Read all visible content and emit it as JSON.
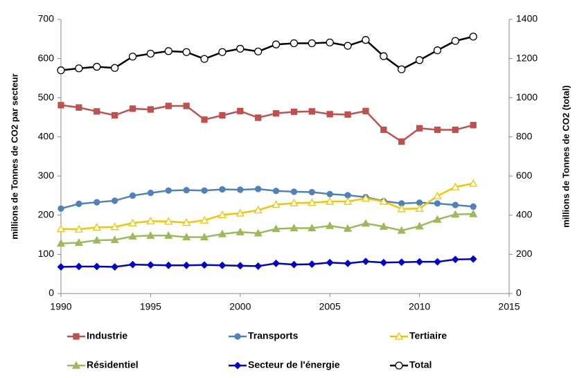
{
  "chart_data": {
    "type": "line",
    "y_label": "millions de Tonnes de CO2 par secteur",
    "y2_label": "millions de  Tonnes de CO2 (total)",
    "x": [
      1990,
      1991,
      1992,
      1993,
      1994,
      1995,
      1996,
      1997,
      1998,
      1999,
      2000,
      2001,
      2002,
      2003,
      2004,
      2005,
      2006,
      2007,
      2008,
      2009,
      2010,
      2011,
      2012,
      2013
    ],
    "xlim": [
      1990,
      2015
    ],
    "xticks": [
      1990,
      1995,
      2000,
      2005,
      2010,
      2015
    ],
    "ylim": [
      0,
      700
    ],
    "yticks": [
      0,
      100,
      200,
      300,
      400,
      500,
      600,
      700
    ],
    "y2lim": [
      0,
      1400
    ],
    "y2ticks": [
      0,
      200,
      400,
      600,
      800,
      1000,
      1200,
      1400
    ],
    "legend": "bottom",
    "series": [
      {
        "name": "Industrie",
        "color": "#c0504d",
        "marker": "square",
        "values": [
          481,
          475,
          465,
          455,
          472,
          470,
          479,
          479,
          444,
          455,
          466,
          449,
          460,
          464,
          465,
          458,
          457,
          466,
          418,
          388,
          422,
          418,
          418,
          430
        ]
      },
      {
        "name": "Transports",
        "color": "#4f81bd",
        "marker": "circle",
        "values": [
          217,
          229,
          233,
          237,
          250,
          257,
          263,
          264,
          263,
          266,
          265,
          267,
          262,
          260,
          259,
          254,
          251,
          246,
          236,
          230,
          232,
          230,
          226,
          222
        ]
      },
      {
        "name": "Tertiaire",
        "color": "#f5c400",
        "marker": "open-triangle",
        "values": [
          165,
          164,
          169,
          170,
          180,
          185,
          184,
          181,
          187,
          201,
          205,
          213,
          227,
          231,
          232,
          235,
          235,
          243,
          235,
          216,
          217,
          249,
          272,
          281
        ]
      },
      {
        "name": "Résidentiel",
        "color": "#9bbb59",
        "marker": "triangle",
        "values": [
          128,
          130,
          136,
          137,
          146,
          148,
          148,
          144,
          144,
          152,
          157,
          154,
          165,
          167,
          167,
          173,
          166,
          179,
          171,
          161,
          172,
          189,
          202,
          203
        ]
      },
      {
        "name": "Secteur de l'énergie",
        "color": "#0000cc",
        "marker": "diamond",
        "values": [
          68,
          69,
          69,
          68,
          74,
          73,
          72,
          72,
          73,
          72,
          71,
          70,
          77,
          74,
          75,
          79,
          77,
          82,
          79,
          80,
          81,
          81,
          87,
          88
        ]
      },
      {
        "name": "Total",
        "color": "#000000",
        "marker": "open-circle",
        "axis": "y2",
        "values": [
          1140,
          1150,
          1158,
          1152,
          1210,
          1225,
          1238,
          1233,
          1198,
          1233,
          1250,
          1236,
          1272,
          1278,
          1278,
          1282,
          1265,
          1295,
          1212,
          1145,
          1192,
          1242,
          1290,
          1312
        ]
      }
    ]
  }
}
